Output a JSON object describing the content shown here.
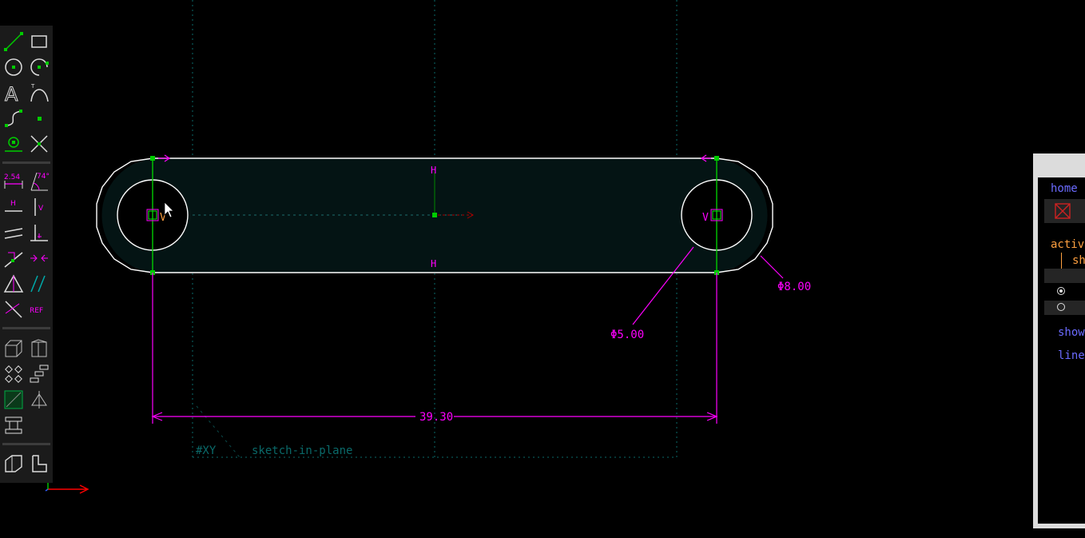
{
  "toolbar": {
    "distance_label": "2.54",
    "angle_label": "74°",
    "horizontal_label": "H",
    "vertical_label": "V",
    "reference_label": "REF",
    "text_tool_label": "A"
  },
  "sketch": {
    "plane_label": "#XY",
    "workplane_label": "sketch-in-plane",
    "horizontal_constraint_top": "H",
    "horizontal_constraint_bottom": "H",
    "vertical_constraint_left": "V",
    "vertical_constraint_right": "V",
    "dim_length": "39.30",
    "dim_inner_diameter": "Φ5.00",
    "dim_outer_diameter": "Φ8.00"
  },
  "text_window": {
    "home_link": "home",
    "active_label": "activ",
    "sh_label": "sh",
    "show_link": "show",
    "line_link": "line"
  },
  "colors": {
    "toolbar_bg": "#1b1b1b",
    "constraint": "#ff00ff",
    "sketch_line": "#ffffff",
    "point": "#00cc00",
    "workplane": "#007a7a",
    "fill": "#041414",
    "link": "#6b6bff",
    "label": "#ffa040",
    "axis_x": "#ff0000"
  }
}
